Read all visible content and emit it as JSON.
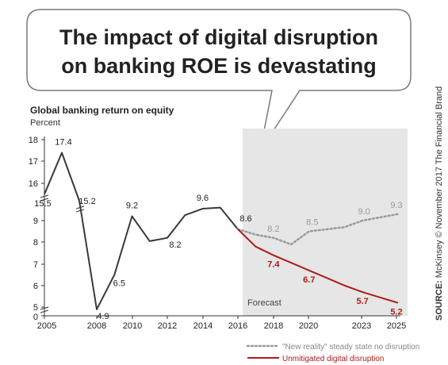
{
  "headline": {
    "line1": "The impact of digital disruption",
    "line2": "on banking ROE is devastating"
  },
  "source": {
    "label": "SOURCE:",
    "text": " McKinsey © November 2017 The Financial Brand"
  },
  "colors": {
    "baseline": "#3a3a3a",
    "no_disruption": "#9a9a9a",
    "digital_disruption": "#b01a1a",
    "forecast_band": "#e6e6e6"
  },
  "chart_data": {
    "type": "line",
    "title": "Global banking return on equity",
    "subtitle": "Percent",
    "forecast_label": "Forecast",
    "x_tick_labels": [
      "2005",
      "2008",
      "2010",
      "2012",
      "2014",
      "2016",
      "2018",
      "2020",
      "2023",
      "2025"
    ],
    "y_tick_labels": [
      "18",
      "17",
      "16",
      "9",
      "8",
      "7",
      "6",
      "5",
      "0"
    ],
    "y_axis_break": true,
    "grid": false,
    "forecast_start": 2016,
    "series": [
      {
        "key": "historical",
        "style": "solid",
        "x": [
          2005,
          2006,
          2007,
          2008,
          2009,
          2010,
          2011,
          2012,
          2013,
          2014,
          2015,
          2016
        ],
        "y": [
          15.5,
          17.4,
          15.2,
          4.9,
          6.5,
          9.2,
          8.05,
          8.2,
          9.25,
          9.55,
          9.6,
          8.6
        ],
        "labels": {
          "2005": "15.5",
          "2006": "17.4",
          "2007": "15.2",
          "2008": "4.9",
          "2009": "6.5",
          "2010": "9.2",
          "2012": "8.2",
          "2014": "9.6",
          "2016": "8.6"
        }
      },
      {
        "key": "no_disruption",
        "name": "\"New reality\" steady state no disruption",
        "style": "dotted",
        "x": [
          2016,
          2017,
          2018,
          2019,
          2020,
          2021,
          2022,
          2023,
          2024,
          2025
        ],
        "y": [
          8.6,
          8.35,
          8.2,
          7.9,
          8.5,
          8.6,
          8.7,
          9.0,
          9.15,
          9.3
        ],
        "labels": {
          "2018": "8.2",
          "2020": "8.5",
          "2023": "9.0",
          "2025": "9.3"
        }
      },
      {
        "key": "digital_disruption",
        "name": "Unmitigated digital disruption",
        "style": "solid",
        "x": [
          2016,
          2017,
          2018,
          2019,
          2020,
          2021,
          2022,
          2023,
          2024,
          2025
        ],
        "y": [
          8.6,
          7.8,
          7.4,
          7.05,
          6.7,
          6.35,
          6.0,
          5.7,
          5.45,
          5.2
        ],
        "labels": {
          "2018": "7.4",
          "2020": "6.7",
          "2023": "5.7",
          "2025": "5.2"
        }
      }
    ]
  }
}
